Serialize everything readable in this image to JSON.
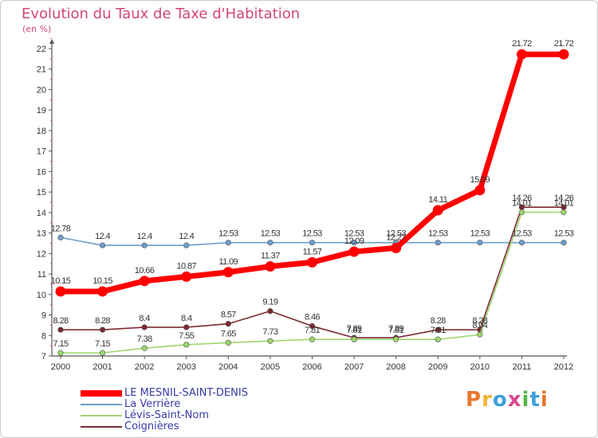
{
  "title": "Evolution du Taux de Taxe d'Habitation",
  "unit_label": "(en %)",
  "logo": {
    "text": "Proxiti",
    "letter_colors": [
      "#e8772e",
      "#f0b33a",
      "#3f9fd8",
      "#d44a8c",
      "#58b74a",
      "#3f9fd8",
      "#e8772e"
    ]
  },
  "colors": {
    "title": "#d2467a",
    "axis": "#666666",
    "grid": "#e6e6e6",
    "legend_text": "#3a3aa8"
  },
  "chart_data": {
    "type": "line",
    "title": "Evolution du Taux de Taxe d'Habitation",
    "ylabel": "(en %)",
    "xlabel": "",
    "x": [
      "2000",
      "2001",
      "2002",
      "2003",
      "2004",
      "2005",
      "2006",
      "2007",
      "2008",
      "2009",
      "2010",
      "2011",
      "2012"
    ],
    "ylim": [
      7,
      22
    ],
    "yticks": [
      "7",
      "8",
      "9",
      "10",
      "11",
      "12",
      "13",
      "14",
      "15",
      "16",
      "17",
      "18",
      "19",
      "20",
      "21",
      "22"
    ],
    "grid": false,
    "legend_position": "bottom-left",
    "series": [
      {
        "name": "LE MESNIL-SAINT-DENIS",
        "color": "#ff0000",
        "values": [
          10.15,
          10.15,
          10.66,
          10.87,
          11.09,
          11.37,
          11.57,
          12.09,
          12.27,
          14.11,
          15.09,
          21.72,
          21.72
        ],
        "labels": [
          "10.15",
          "10.15",
          "10.66",
          "10.87",
          "11.09",
          "11.37",
          "11.57",
          "12.09",
          "12.27",
          "14.11",
          "15.09",
          "21.72",
          "21.72"
        ]
      },
      {
        "name": "La Verrière",
        "color": "#6e9ec8",
        "values": [
          12.78,
          12.4,
          12.4,
          12.4,
          12.53,
          12.53,
          12.53,
          12.53,
          12.53,
          12.53,
          12.53,
          12.53,
          12.53
        ],
        "labels": [
          "12.78",
          "12.4",
          "12.4",
          "12.4",
          "12.53",
          "12.53",
          "12.53",
          "12.53",
          "12.53",
          "12.53",
          "12.53",
          "12.53",
          "12.53"
        ]
      },
      {
        "name": "Lévis-Saint-Nom",
        "color": "#9dd66d",
        "values": [
          7.15,
          7.15,
          7.38,
          7.55,
          7.65,
          7.73,
          7.81,
          7.81,
          7.81,
          7.81,
          8.04,
          14.01,
          14.01
        ],
        "labels": [
          "7.15",
          "7.15",
          "7.38",
          "7.55",
          "7.65",
          "7.73",
          "7.81",
          "7.81",
          "7.81",
          "7.81",
          "8.04",
          "14.01",
          "14.01"
        ]
      },
      {
        "name": "Coignières",
        "color": "#7b2a32",
        "values": [
          8.28,
          8.28,
          8.4,
          8.4,
          8.57,
          9.19,
          8.46,
          7.89,
          7.89,
          8.28,
          8.28,
          14.26,
          14.26
        ],
        "labels": [
          "8.28",
          "8.28",
          "8.4",
          "8.4",
          "8.57",
          "9.19",
          "8.46",
          "7.89",
          "7.89",
          "8.28",
          "8.28",
          "14.26",
          "14.26"
        ]
      }
    ]
  }
}
